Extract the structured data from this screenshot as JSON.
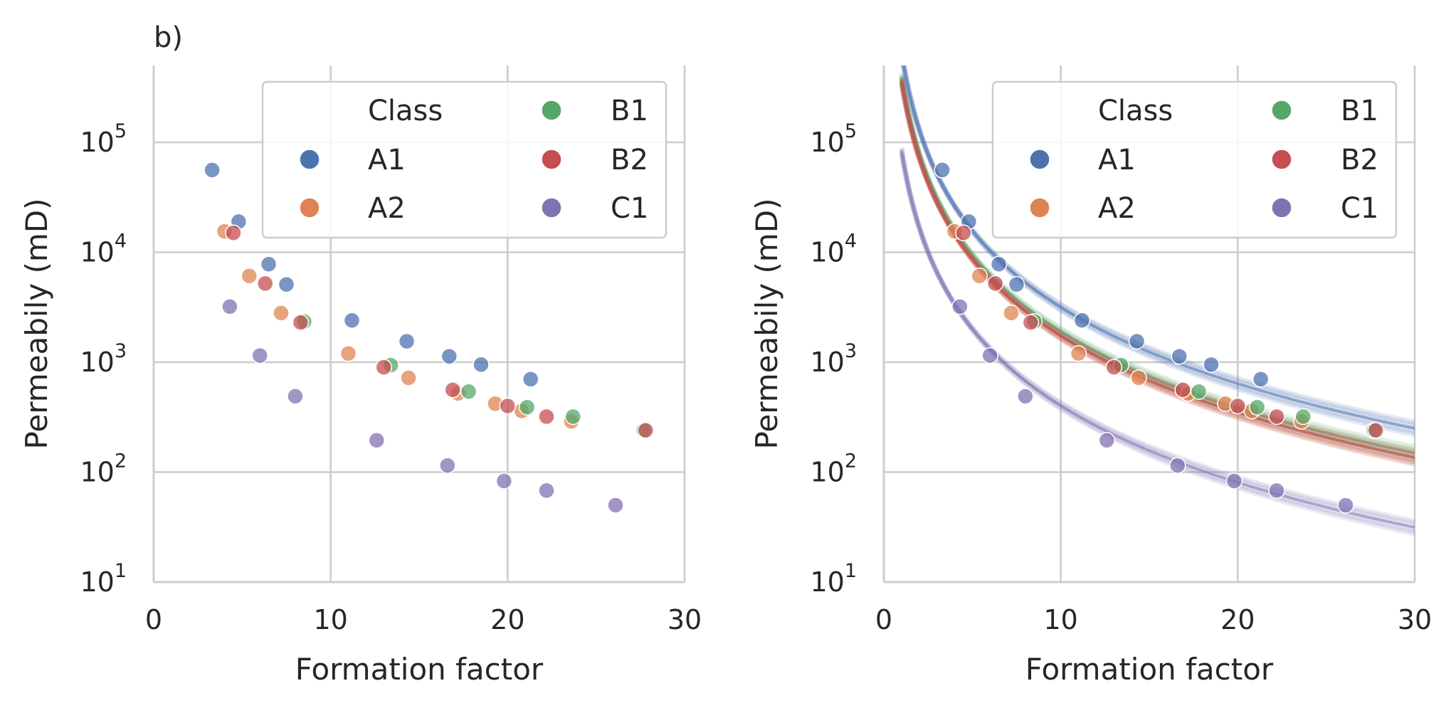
{
  "colors": {
    "A1": "#4c72b0",
    "A2": "#dd8452",
    "B1": "#55a868",
    "B2": "#c44e52",
    "C1": "#8172b3"
  },
  "chart_data": [
    {
      "type": "scatter",
      "panel_label": "b)",
      "xlabel": "Formation factor",
      "ylabel": "Permeabily (mD)",
      "xlim": [
        0,
        30
      ],
      "ylim": [
        10,
        500000
      ],
      "y_scale": "log",
      "x_ticks": [
        "0",
        "10",
        "20",
        "30"
      ],
      "y_ticks": [
        {
          "base": "10",
          "exp": "1"
        },
        {
          "base": "10",
          "exp": "2"
        },
        {
          "base": "10",
          "exp": "3"
        },
        {
          "base": "10",
          "exp": "4"
        },
        {
          "base": "10",
          "exp": "5"
        }
      ],
      "grid": true,
      "legend": {
        "title": "Class",
        "placement": "top-right",
        "columns": 2,
        "entries": [
          "A1",
          "A2",
          "B1",
          "B2",
          "C1"
        ]
      },
      "series": [
        {
          "name": "A1",
          "points": [
            [
              3.3,
              56000
            ],
            [
              4.8,
              19000
            ],
            [
              6.5,
              7800
            ],
            [
              7.5,
              5100
            ],
            [
              11.2,
              2400
            ],
            [
              14.3,
              1550
            ],
            [
              16.7,
              1130
            ],
            [
              18.5,
              950
            ],
            [
              21.3,
              700
            ]
          ]
        },
        {
          "name": "A2",
          "points": [
            [
              4.0,
              15500
            ],
            [
              5.4,
              6100
            ],
            [
              7.2,
              2800
            ],
            [
              11.0,
              1200
            ],
            [
              14.4,
              720
            ],
            [
              17.2,
              520
            ],
            [
              19.3,
              420
            ],
            [
              20.8,
              360
            ],
            [
              23.6,
              290
            ]
          ]
        },
        {
          "name": "B1",
          "points": [
            [
              8.5,
              2350
            ],
            [
              13.4,
              940
            ],
            [
              17.8,
              540
            ],
            [
              21.1,
              390
            ],
            [
              23.7,
              320
            ],
            [
              27.7,
              240
            ]
          ]
        },
        {
          "name": "B2",
          "points": [
            [
              4.5,
              15000
            ],
            [
              6.3,
              5200
            ],
            [
              8.3,
              2300
            ],
            [
              13.0,
              900
            ],
            [
              16.9,
              560
            ],
            [
              20.0,
              400
            ],
            [
              22.2,
              320
            ],
            [
              27.8,
              240
            ]
          ]
        },
        {
          "name": "C1",
          "points": [
            [
              4.3,
              3200
            ],
            [
              6.0,
              1150
            ],
            [
              8.0,
              490
            ],
            [
              12.6,
              195
            ],
            [
              16.6,
              115
            ],
            [
              19.8,
              83
            ],
            [
              22.2,
              68
            ],
            [
              26.1,
              50
            ]
          ]
        }
      ]
    },
    {
      "type": "scatter",
      "xlabel": "Formation factor",
      "ylabel": "Permeabily (mD)",
      "xlim": [
        0,
        30
      ],
      "ylim": [
        10,
        500000
      ],
      "y_scale": "log",
      "x_ticks": [
        "0",
        "10",
        "20",
        "30"
      ],
      "y_ticks": [
        {
          "base": "10",
          "exp": "1"
        },
        {
          "base": "10",
          "exp": "2"
        },
        {
          "base": "10",
          "exp": "3"
        },
        {
          "base": "10",
          "exp": "4"
        },
        {
          "base": "10",
          "exp": "5"
        }
      ],
      "grid": true,
      "legend": {
        "title": "Class",
        "placement": "top-right",
        "columns": 2,
        "entries": [
          "A1",
          "A2",
          "B1",
          "B2",
          "C1"
        ]
      },
      "fit_curves": [
        {
          "name": "A1",
          "form": "k = a * F^-b",
          "a": 646000,
          "b": 2.31
        },
        {
          "name": "A2",
          "form": "k = a * F^-b",
          "a": 363000,
          "b": 2.32
        },
        {
          "name": "B1",
          "form": "k = a * F^-b",
          "a": 398000,
          "b": 2.32
        },
        {
          "name": "B2",
          "form": "k = a * F^-b",
          "a": 363000,
          "b": 2.32
        },
        {
          "name": "C1",
          "form": "k = a * F^-b",
          "a": 84000,
          "b": 2.32
        }
      ],
      "series": [
        {
          "name": "A1",
          "points": [
            [
              3.3,
              56000
            ],
            [
              4.8,
              19000
            ],
            [
              6.5,
              7800
            ],
            [
              7.5,
              5100
            ],
            [
              11.2,
              2400
            ],
            [
              14.3,
              1550
            ],
            [
              16.7,
              1130
            ],
            [
              18.5,
              950
            ],
            [
              21.3,
              700
            ]
          ]
        },
        {
          "name": "A2",
          "points": [
            [
              4.0,
              15500
            ],
            [
              5.4,
              6100
            ],
            [
              7.2,
              2800
            ],
            [
              11.0,
              1200
            ],
            [
              14.4,
              720
            ],
            [
              17.2,
              520
            ],
            [
              19.3,
              420
            ],
            [
              20.8,
              360
            ],
            [
              23.6,
              290
            ]
          ]
        },
        {
          "name": "B1",
          "points": [
            [
              8.5,
              2350
            ],
            [
              13.4,
              940
            ],
            [
              17.8,
              540
            ],
            [
              21.1,
              390
            ],
            [
              23.7,
              320
            ],
            [
              27.7,
              240
            ]
          ]
        },
        {
          "name": "B2",
          "points": [
            [
              4.5,
              15000
            ],
            [
              6.3,
              5200
            ],
            [
              8.3,
              2300
            ],
            [
              13.0,
              900
            ],
            [
              16.9,
              560
            ],
            [
              20.0,
              400
            ],
            [
              22.2,
              320
            ],
            [
              27.8,
              240
            ]
          ]
        },
        {
          "name": "C1",
          "points": [
            [
              4.3,
              3200
            ],
            [
              6.0,
              1150
            ],
            [
              8.0,
              490
            ],
            [
              12.6,
              195
            ],
            [
              16.6,
              115
            ],
            [
              19.8,
              83
            ],
            [
              22.2,
              68
            ],
            [
              26.1,
              50
            ]
          ]
        }
      ]
    }
  ]
}
